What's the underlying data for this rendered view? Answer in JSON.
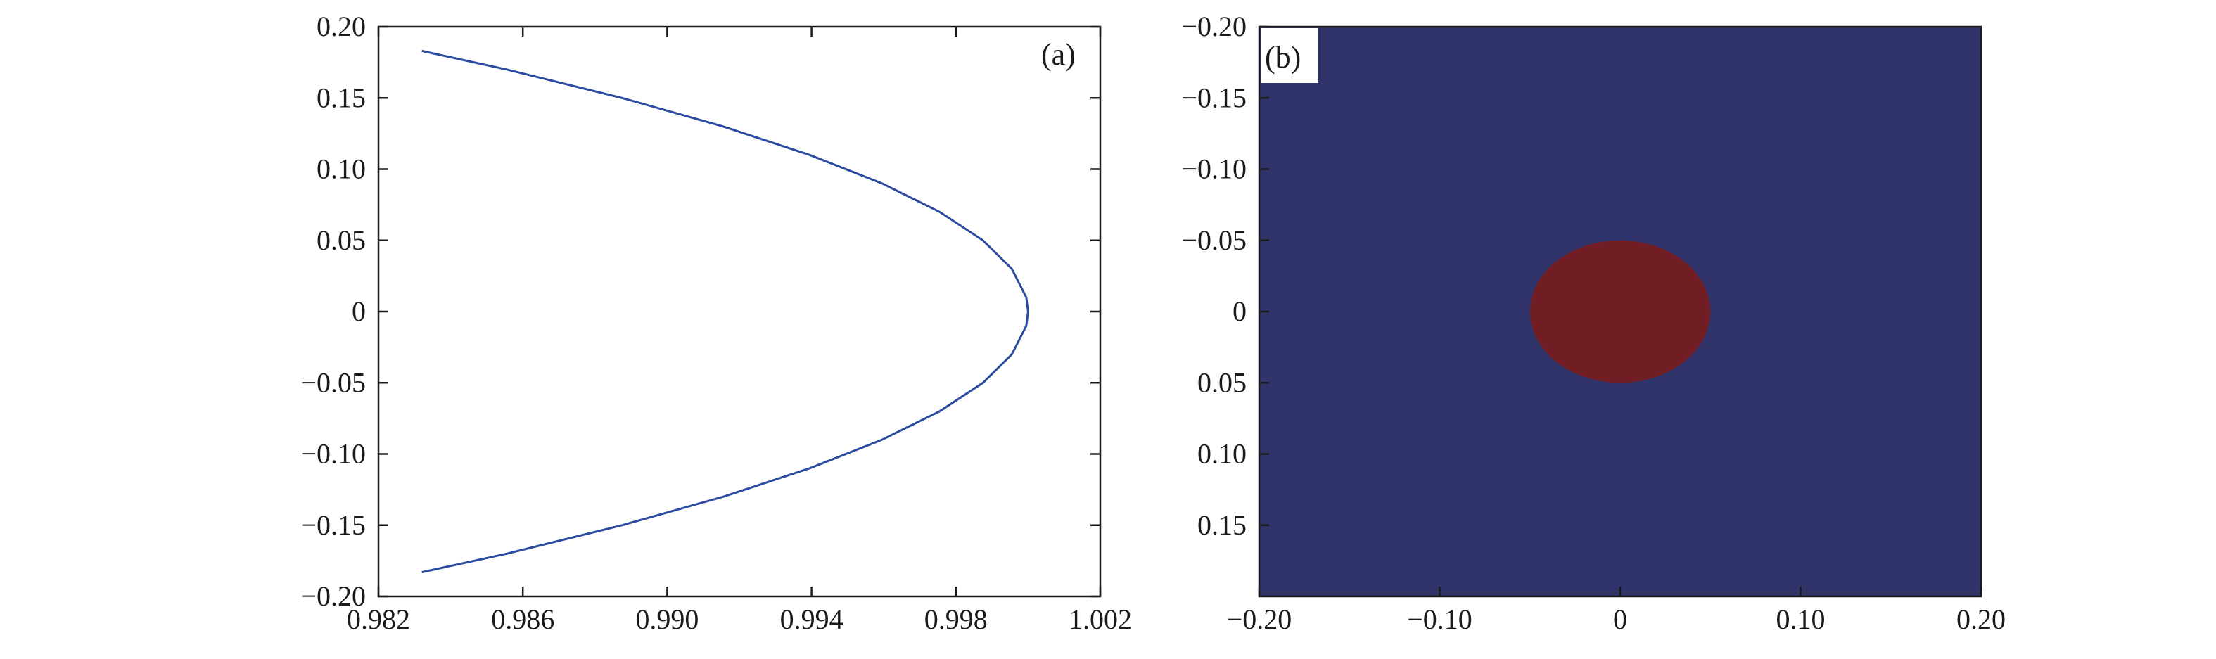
{
  "chart_data": [
    {
      "type": "line",
      "panel_label": "(a)",
      "xlim": [
        0.982,
        1.002
      ],
      "ylim": [
        -0.2,
        0.2
      ],
      "xticks": [
        0.982,
        0.986,
        0.99,
        0.994,
        0.998,
        1.002
      ],
      "xtick_labels": [
        "0.982",
        "0.986",
        "0.990",
        "0.994",
        "0.998",
        "1.002"
      ],
      "yticks": [
        0.2,
        0.15,
        0.1,
        0.05,
        0,
        -0.05,
        -0.1,
        -0.15,
        -0.2
      ],
      "ytick_labels": [
        "0.20",
        "0.15",
        "0.10",
        "0.05",
        "0",
        "−0.05",
        "−0.10",
        "−0.15",
        "−0.20"
      ],
      "grid": false,
      "series": [
        {
          "color": "#2b4ba0",
          "y": [
            -0.183,
            -0.17,
            -0.15,
            -0.13,
            -0.11,
            -0.09,
            -0.07,
            -0.05,
            -0.03,
            -0.01,
            0,
            0.01,
            0.03,
            0.05,
            0.07,
            0.09,
            0.11,
            0.13,
            0.15,
            0.17,
            0.183
          ],
          "x": [
            0.9832,
            0.98555,
            0.98875,
            0.99155,
            0.99395,
            0.99595,
            0.99755,
            0.99875,
            0.99955,
            0.99995,
            1.0,
            0.99995,
            0.99955,
            0.99875,
            0.99755,
            0.99595,
            0.99395,
            0.99155,
            0.98875,
            0.98555,
            0.9832
          ]
        }
      ]
    },
    {
      "type": "heatmap",
      "panel_label": "(b)",
      "xlim": [
        -0.2,
        0.2
      ],
      "ylim": [
        -0.2,
        0.2
      ],
      "xticks": [
        -0.2,
        -0.1,
        0,
        0.1,
        0.2
      ],
      "xtick_labels": [
        "−0.20",
        "−0.10",
        "0",
        "0.10",
        "0.20"
      ],
      "yticks": [
        -0.2,
        -0.15,
        -0.1,
        -0.05,
        0,
        0.05,
        0.1,
        0.15
      ],
      "ytick_labels": [
        "−0.20",
        "−0.15",
        "−0.10",
        "−0.05",
        "0",
        "0.05",
        "0.10",
        "0.15"
      ],
      "background_color": "#30346a",
      "region": {
        "shape": "ellipse",
        "color": "#711d24",
        "center": [
          0,
          0
        ],
        "radius_x": 0.05,
        "radius_y": 0.05
      }
    }
  ]
}
